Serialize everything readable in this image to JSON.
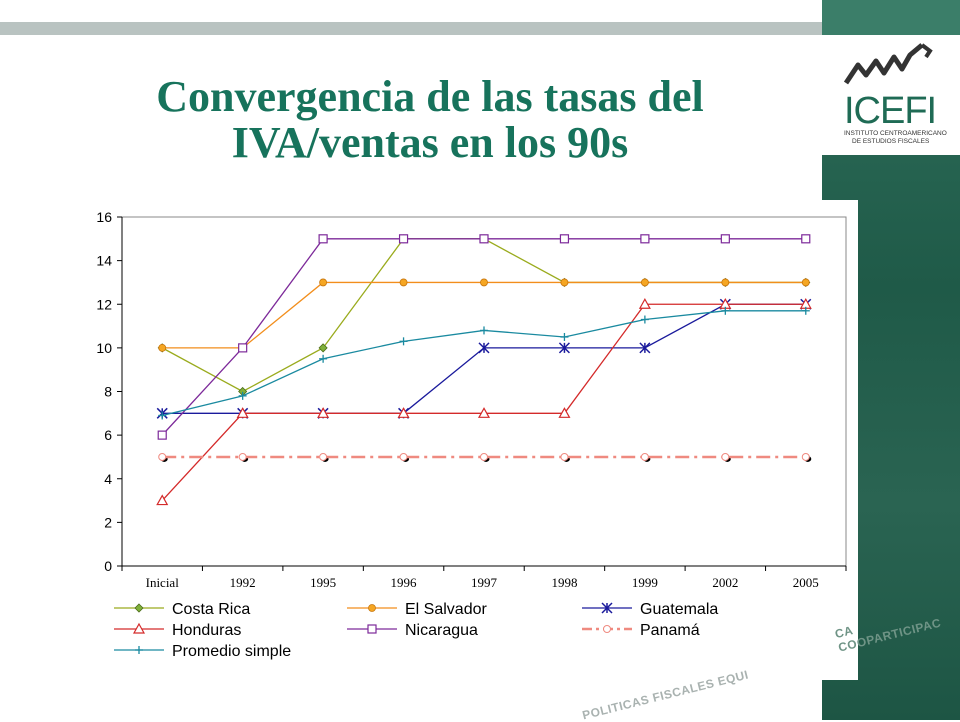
{
  "slide": {
    "title_line1": "Convergencia de las tasas del",
    "title_line2": "IVA/ventas en los 90s",
    "logo_text": "ICEFI",
    "logo_subtitle_line1": "INSTITUTO CENTROAMERICANO",
    "logo_subtitle_line2": "DE ESTUDIOS FISCALES",
    "watermark_bottom": "POLITICAS FISCALES EQUI",
    "watermark_side": "CA COOPARTICIPAC"
  },
  "colors": {
    "title": "#17735c",
    "panel": "#1f5a48",
    "logo_text": "#1f6b55"
  },
  "chart_data": {
    "type": "line",
    "categories": [
      "Inicial",
      "1992",
      "1995",
      "1996",
      "1997",
      "1998",
      "1999",
      "2002",
      "2005"
    ],
    "ylim": [
      0,
      16
    ],
    "yticks": [
      "0",
      "2",
      "4",
      "6",
      "8",
      "10",
      "12",
      "14",
      "16"
    ],
    "grid": false,
    "legend_position": "bottom",
    "series": [
      {
        "name": "Costa Rica",
        "color": "#9aab1d",
        "marker": "diamond",
        "values": [
          10,
          8,
          10,
          15,
          15,
          13,
          13,
          13,
          13
        ]
      },
      {
        "name": "El Salvador",
        "color": "#f28e1c",
        "marker": "circle",
        "values": [
          10,
          10,
          13,
          13,
          13,
          13,
          13,
          13,
          13
        ]
      },
      {
        "name": "Guatemala",
        "color": "#1a1a9c",
        "marker": "asterisk",
        "values": [
          7,
          7,
          7,
          7,
          10,
          10,
          10,
          12,
          12
        ]
      },
      {
        "name": "Honduras",
        "color": "#d42a2a",
        "marker": "triangle",
        "values": [
          3,
          7,
          7,
          7,
          7,
          7,
          12,
          12,
          12
        ]
      },
      {
        "name": "Nicaragua",
        "color": "#7d2a9a",
        "marker": "square",
        "values": [
          6,
          10,
          15,
          15,
          15,
          15,
          15,
          15,
          15
        ]
      },
      {
        "name": "Panamá",
        "color": "#ef8a80",
        "marker": "circle-open",
        "dash": true,
        "values": [
          5,
          5,
          5,
          5,
          5,
          5,
          5,
          5,
          5
        ]
      },
      {
        "name": "Promedio simple",
        "color": "#1a8aa0",
        "marker": "plus",
        "values": [
          6.9,
          7.8,
          9.5,
          10.3,
          10.8,
          10.5,
          11.3,
          11.7,
          11.7
        ]
      }
    ]
  }
}
